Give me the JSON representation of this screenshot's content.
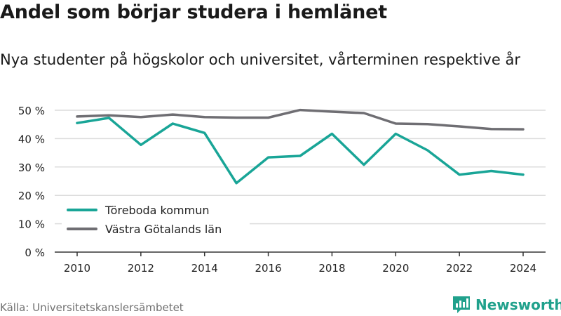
{
  "header": {
    "title": "Andel som börjar studera i hemlänet",
    "subtitle": "Nya studenter på högskolor och universitet, vårterminen respektive år"
  },
  "footer": {
    "source": "Källa: Universitetskanslersämbetet",
    "brand": "Newsworthy"
  },
  "colors": {
    "teal": "#19a597",
    "gray": "#6f6e73",
    "grid": "#dcdcdc",
    "brand": "#20a18c"
  },
  "icons": {
    "brand_logo": "bar-chart-speech-bubble-icon"
  },
  "chart_data": {
    "type": "line",
    "x": [
      2010,
      2011,
      2012,
      2013,
      2014,
      2015,
      2016,
      2017,
      2018,
      2019,
      2020,
      2021,
      2022,
      2023,
      2024
    ],
    "xticks": [
      "2010",
      "2012",
      "2014",
      "2016",
      "2018",
      "2020",
      "2022",
      "2024"
    ],
    "yticks": [
      "0 %",
      "10 %",
      "20 %",
      "30 %",
      "40 %",
      "50 %"
    ],
    "ylim": [
      0,
      50
    ],
    "grid": true,
    "legend_position": "bottom-left",
    "series": [
      {
        "name": "Töreboda kommun",
        "color": "#19a597",
        "values": [
          45.5,
          47.3,
          37.8,
          45.3,
          42.0,
          24.3,
          33.4,
          33.9,
          41.7,
          30.8,
          41.7,
          35.9,
          27.3,
          28.6,
          27.3
        ]
      },
      {
        "name": "Västra Götalands län",
        "color": "#6f6e73",
        "values": [
          47.8,
          48.2,
          47.6,
          48.5,
          47.6,
          47.4,
          47.4,
          50.1,
          49.5,
          49.0,
          45.3,
          45.1,
          44.3,
          43.4,
          43.3
        ]
      }
    ]
  }
}
